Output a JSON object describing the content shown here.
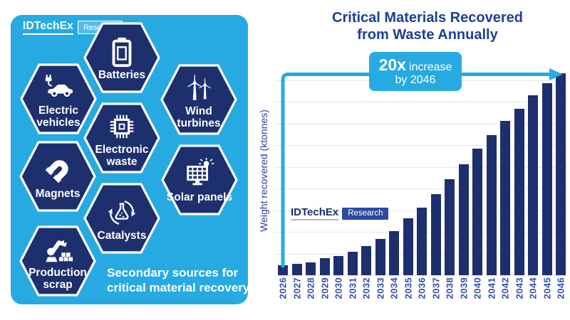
{
  "brand": {
    "name": "IDTechEx",
    "division": "Research"
  },
  "left_panel": {
    "caption": "Secondary sources for critical material recovery",
    "hexagons": [
      {
        "label": "Batteries",
        "icon": "battery-icon"
      },
      {
        "label": "Electric vehicles",
        "icon": "electric-car-icon"
      },
      {
        "label": "Wind turbines",
        "icon": "wind-turbine-icon"
      },
      {
        "label": "Electronic waste",
        "icon": "microchip-icon"
      },
      {
        "label": "Magnets",
        "icon": "magnet-icon"
      },
      {
        "label": "Solar panels",
        "icon": "solar-panel-icon"
      },
      {
        "label": "Catalysts",
        "icon": "catalyst-flask-icon"
      },
      {
        "label": "Production scrap",
        "icon": "robot-arm-icon"
      }
    ]
  },
  "chart": {
    "title_line1": "Critical Materials Recovered",
    "title_line2": "from Waste Annually",
    "callout_big": "20x",
    "callout_rest": "increase",
    "callout_line2": "by 2046"
  },
  "chart_data": {
    "type": "bar",
    "title": "Critical Materials Recovered from Waste Annually",
    "xlabel": "",
    "ylabel": "Weight recovered (ktonnes)",
    "categories": [
      "2026",
      "2027",
      "2028",
      "2029",
      "2030",
      "2031",
      "2032",
      "2033",
      "2034",
      "2035",
      "2036",
      "2037",
      "2038",
      "2039",
      "2040",
      "2041",
      "2042",
      "2043",
      "2044",
      "2045",
      "2046"
    ],
    "values": [
      1.0,
      1.1,
      1.3,
      1.7,
      1.9,
      2.3,
      2.9,
      3.6,
      4.4,
      5.6,
      6.7,
      8.0,
      9.5,
      11.0,
      12.5,
      13.9,
      15.3,
      16.5,
      17.8,
      19.0,
      20.0
    ],
    "ylim": [
      0,
      20
    ],
    "grid": true,
    "legend": false,
    "bar_color": "#1e2f6e",
    "annotation": "20x increase by 2046"
  },
  "colors": {
    "cyan": "#27aae1",
    "navy": "#1e2f6e",
    "title_blue": "#1d4094",
    "tick_blue": "#3550a5",
    "gridline": "#e5e5e5"
  }
}
